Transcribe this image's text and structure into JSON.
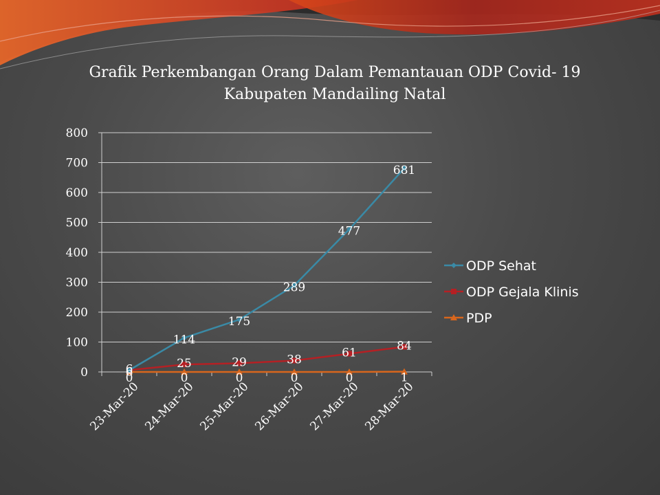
{
  "chart_data": {
    "type": "line",
    "title_lines": [
      "Grafik Perkembangan Orang Dalam Pemantauan ODP Covid- 19",
      "Kabupaten Mandailing Natal"
    ],
    "categories": [
      "23-Mar-20",
      "24-Mar-20",
      "25-Mar-20",
      "26-Mar-20",
      "27-Mar-20",
      "28-Mar-20"
    ],
    "yticks": [
      "0",
      "100",
      "200",
      "300",
      "400",
      "500",
      "600",
      "700",
      "800"
    ],
    "ylim": [
      0,
      800
    ],
    "grid": true,
    "legend_position": "right",
    "series": [
      {
        "name": "ODP Sehat",
        "values": [
          6,
          114,
          175,
          289,
          477,
          681
        ],
        "labels": [
          "6",
          "114",
          "175",
          "289",
          "477",
          "681"
        ],
        "color": "#3a8aa6",
        "marker": "diamond"
      },
      {
        "name": "ODP Gejala Klinis",
        "values": [
          6,
          25,
          29,
          38,
          61,
          84
        ],
        "labels": [
          "6",
          "25",
          "29",
          "38",
          "61",
          "84"
        ],
        "color": "#b52024",
        "marker": "square"
      },
      {
        "name": "PDP",
        "values": [
          0,
          0,
          0,
          0,
          0,
          1
        ],
        "labels": [
          "0",
          "0",
          "0",
          "0",
          "0",
          "1"
        ],
        "color": "#d9661c",
        "marker": "triangle"
      }
    ]
  }
}
